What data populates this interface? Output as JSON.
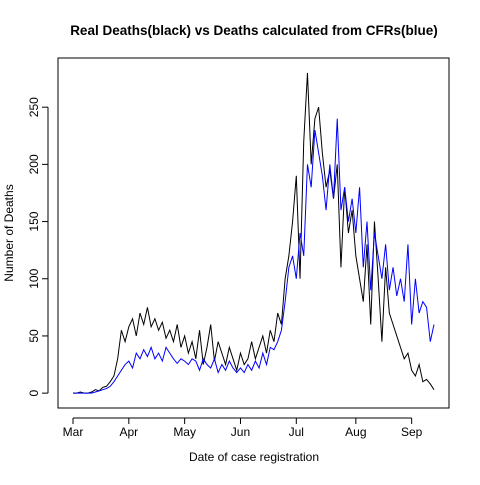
{
  "chart_data": {
    "type": "line",
    "title": "Real Deaths(black) vs Deaths calculated from CFRs(blue)",
    "x_label": "Date of case registration",
    "y_label": "Number of Deaths",
    "categories": [
      "Mar",
      null,
      null,
      null,
      null,
      null,
      null,
      null,
      null,
      null,
      null,
      null,
      null,
      null,
      null,
      "Apr",
      null,
      null,
      null,
      null,
      null,
      null,
      null,
      null,
      null,
      null,
      null,
      null,
      null,
      null,
      "May",
      null,
      null,
      null,
      null,
      null,
      null,
      null,
      null,
      null,
      null,
      null,
      null,
      null,
      null,
      "Jun",
      null,
      null,
      null,
      null,
      null,
      null,
      null,
      null,
      null,
      null,
      null,
      null,
      null,
      null,
      "Jul",
      null,
      null,
      null,
      null,
      null,
      null,
      null,
      null,
      null,
      null,
      null,
      null,
      null,
      null,
      null,
      "Aug",
      null,
      null,
      null,
      null,
      null,
      null,
      null,
      null,
      null,
      null,
      null,
      null,
      null,
      null,
      "Sep",
      null,
      null,
      null,
      null,
      null,
      null
    ],
    "series": [
      {
        "color": "#000000",
        "values": [
          0,
          0,
          1,
          0,
          0,
          1,
          3,
          2,
          5,
          6,
          10,
          15,
          30,
          55,
          45,
          58,
          65,
          50,
          70,
          60,
          75,
          58,
          65,
          55,
          62,
          48,
          55,
          45,
          60,
          40,
          50,
          35,
          45,
          30,
          55,
          25,
          40,
          60,
          28,
          45,
          35,
          25,
          40,
          30,
          20,
          35,
          25,
          30,
          45,
          30,
          40,
          50,
          35,
          55,
          45,
          70,
          60,
          100,
          120,
          150,
          190,
          100,
          220,
          280,
          200,
          240,
          250,
          210,
          180,
          195,
          170,
          200,
          110,
          180,
          140,
          160,
          120,
          100,
          80,
          130,
          60,
          150,
          100,
          45,
          110,
          70,
          60,
          50,
          40,
          30,
          35,
          20,
          15,
          25,
          10,
          12,
          8,
          3
        ]
      },
      {
        "color": "#0000ff",
        "values": [
          0,
          0,
          0,
          0,
          0,
          0,
          1,
          2,
          3,
          4,
          6,
          10,
          15,
          20,
          25,
          28,
          22,
          35,
          30,
          38,
          32,
          40,
          30,
          35,
          28,
          40,
          35,
          30,
          26,
          30,
          28,
          25,
          30,
          28,
          20,
          30,
          25,
          22,
          30,
          18,
          25,
          20,
          28,
          22,
          18,
          22,
          18,
          25,
          20,
          28,
          22,
          35,
          25,
          40,
          38,
          45,
          55,
          80,
          110,
          120,
          100,
          140,
          120,
          200,
          180,
          230,
          210,
          190,
          160,
          200,
          170,
          240,
          160,
          180,
          150,
          170,
          140,
          180,
          110,
          150,
          90,
          140,
          120,
          100,
          130,
          90,
          110,
          85,
          100,
          80,
          130,
          60,
          100,
          70,
          80,
          75,
          45,
          60
        ]
      }
    ],
    "ylim": [
      -13,
      293
    ],
    "yticks": [
      0,
      50,
      100,
      150,
      200,
      250
    ]
  }
}
